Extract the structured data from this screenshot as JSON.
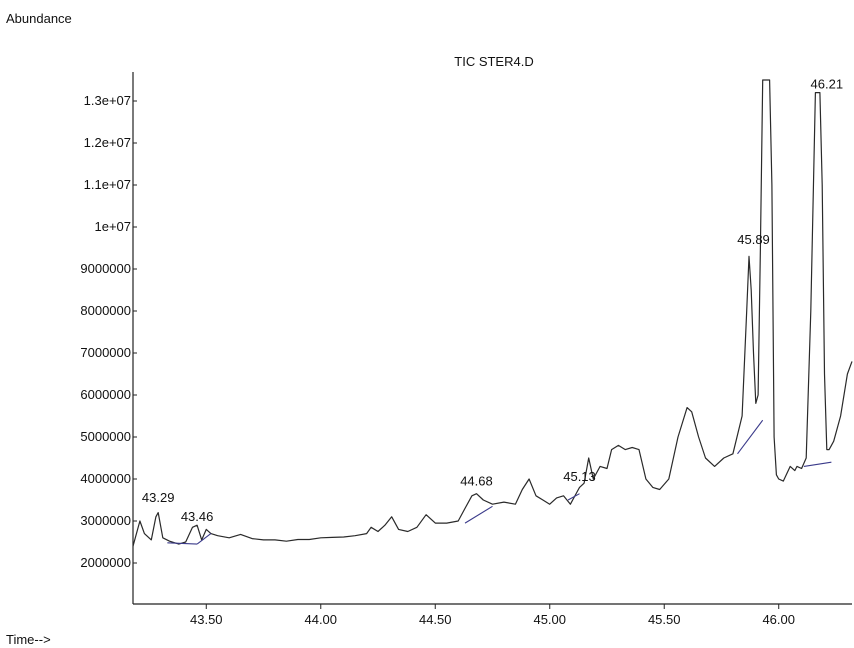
{
  "chart_data": {
    "type": "line",
    "title": "TIC STER4.D",
    "ylabel": "Abundance",
    "xlabel": "Time-->",
    "xlim": [
      43.18,
      46.32
    ],
    "ylim": [
      1000000,
      13500000
    ],
    "colors": {
      "trace": "#2a2a2a",
      "baseline": "#3a3a8a",
      "axis": "#222222"
    },
    "yticks": [
      {
        "value": 2000000,
        "label": "2000000"
      },
      {
        "value": 3000000,
        "label": "3000000"
      },
      {
        "value": 4000000,
        "label": "4000000"
      },
      {
        "value": 5000000,
        "label": "5000000"
      },
      {
        "value": 6000000,
        "label": "6000000"
      },
      {
        "value": 7000000,
        "label": "7000000"
      },
      {
        "value": 8000000,
        "label": "8000000"
      },
      {
        "value": 9000000,
        "label": "9000000"
      },
      {
        "value": 10000000,
        "label": "1e+07"
      },
      {
        "value": 11000000,
        "label": "1.1e+07"
      },
      {
        "value": 12000000,
        "label": "1.2e+07"
      },
      {
        "value": 13000000,
        "label": "1.3e+07"
      }
    ],
    "xticks": [
      {
        "value": 43.5,
        "label": "43.50"
      },
      {
        "value": 44.0,
        "label": "44.00"
      },
      {
        "value": 44.5,
        "label": "44.50"
      },
      {
        "value": 45.0,
        "label": "45.00"
      },
      {
        "value": 45.5,
        "label": "45.50"
      },
      {
        "value": 46.0,
        "label": "46.00"
      }
    ],
    "series": [
      {
        "x": [
          43.18,
          43.21,
          43.23,
          43.26,
          43.28,
          43.29,
          43.31,
          43.34,
          43.38,
          43.41,
          43.44,
          43.46,
          43.48,
          43.5,
          43.52,
          43.55,
          43.6,
          43.65,
          43.7,
          43.75,
          43.8,
          43.85,
          43.9,
          43.95,
          44.0,
          44.05,
          44.1,
          44.15,
          44.2,
          44.22,
          44.25,
          44.28,
          44.31,
          44.34,
          44.38,
          44.42,
          44.46,
          44.5,
          44.55,
          44.6,
          44.63,
          44.66,
          44.68,
          44.71,
          44.75,
          44.8,
          44.85,
          44.88,
          44.91,
          44.94,
          44.97,
          45.0,
          45.03,
          45.06,
          45.09,
          45.12,
          45.13,
          45.15,
          45.17,
          45.19,
          45.22,
          45.25,
          45.27,
          45.3,
          45.33,
          45.36,
          45.39,
          45.42,
          45.45,
          45.48,
          45.52,
          45.56,
          45.6,
          45.62,
          45.65,
          45.68,
          45.72,
          45.76,
          45.8,
          45.84,
          45.86,
          45.87,
          45.88,
          45.89,
          45.9,
          45.91,
          45.92,
          45.93,
          45.94,
          45.95,
          45.96,
          45.97,
          45.98,
          45.99,
          46.0,
          46.02,
          46.05,
          46.07,
          46.08,
          46.1,
          46.12,
          46.14,
          46.16,
          46.18,
          46.19,
          46.2,
          46.21,
          46.22,
          46.23,
          46.24,
          46.25,
          46.27,
          46.3,
          46.32
        ],
        "y": [
          2400000,
          3000000,
          2700000,
          2550000,
          3100000,
          3200000,
          2600000,
          2520000,
          2450000,
          2500000,
          2850000,
          2900000,
          2550000,
          2800000,
          2700000,
          2650000,
          2600000,
          2680000,
          2580000,
          2550000,
          2550000,
          2520000,
          2560000,
          2560000,
          2600000,
          2610000,
          2620000,
          2650000,
          2700000,
          2850000,
          2750000,
          2900000,
          3100000,
          2800000,
          2750000,
          2850000,
          3150000,
          2950000,
          2950000,
          3000000,
          3300000,
          3600000,
          3650000,
          3500000,
          3400000,
          3450000,
          3400000,
          3750000,
          4000000,
          3600000,
          3500000,
          3400000,
          3550000,
          3600000,
          3400000,
          3700000,
          3800000,
          3900000,
          4500000,
          4000000,
          4300000,
          4250000,
          4700000,
          4800000,
          4700000,
          4750000,
          4700000,
          4000000,
          3800000,
          3750000,
          4000000,
          5000000,
          5700000,
          5600000,
          5000000,
          4500000,
          4300000,
          4500000,
          4600000,
          5500000,
          8000000,
          9300000,
          8500000,
          7000000,
          5800000,
          6000000,
          9500000,
          13500000,
          13500000,
          13500000,
          13500000,
          11000000,
          5000000,
          4100000,
          4000000,
          3950000,
          4300000,
          4200000,
          4300000,
          4250000,
          4500000,
          8000000,
          13200000,
          13200000,
          11000000,
          6500000,
          4700000,
          4700000,
          4800000,
          4900000,
          5100000,
          5500000,
          6500000,
          6800000
        ]
      }
    ],
    "baselines": [
      {
        "x": [
          43.33,
          43.46
        ],
        "y": [
          2480000,
          2450000
        ]
      },
      {
        "x": [
          43.46,
          43.52
        ],
        "y": [
          2450000,
          2700000
        ]
      },
      {
        "x": [
          44.63,
          44.75
        ],
        "y": [
          2950000,
          3350000
        ]
      },
      {
        "x": [
          45.08,
          45.13
        ],
        "y": [
          3500000,
          3650000
        ]
      },
      {
        "x": [
          45.82,
          45.93
        ],
        "y": [
          4600000,
          5400000
        ]
      },
      {
        "x": [
          46.11,
          46.23
        ],
        "y": [
          4300000,
          4400000
        ]
      }
    ],
    "annotations": [
      {
        "label": "43.29",
        "x": 43.29,
        "y": 3450000
      },
      {
        "label": "43.46",
        "x": 43.46,
        "y": 3000000
      },
      {
        "label": "44.68",
        "x": 44.68,
        "y": 3850000
      },
      {
        "label": "45.13",
        "x": 45.13,
        "y": 3950000
      },
      {
        "label": "45.89",
        "x": 45.89,
        "y": 9600000
      },
      {
        "label": "46.21",
        "x": 46.21,
        "y": 13300000
      }
    ]
  }
}
